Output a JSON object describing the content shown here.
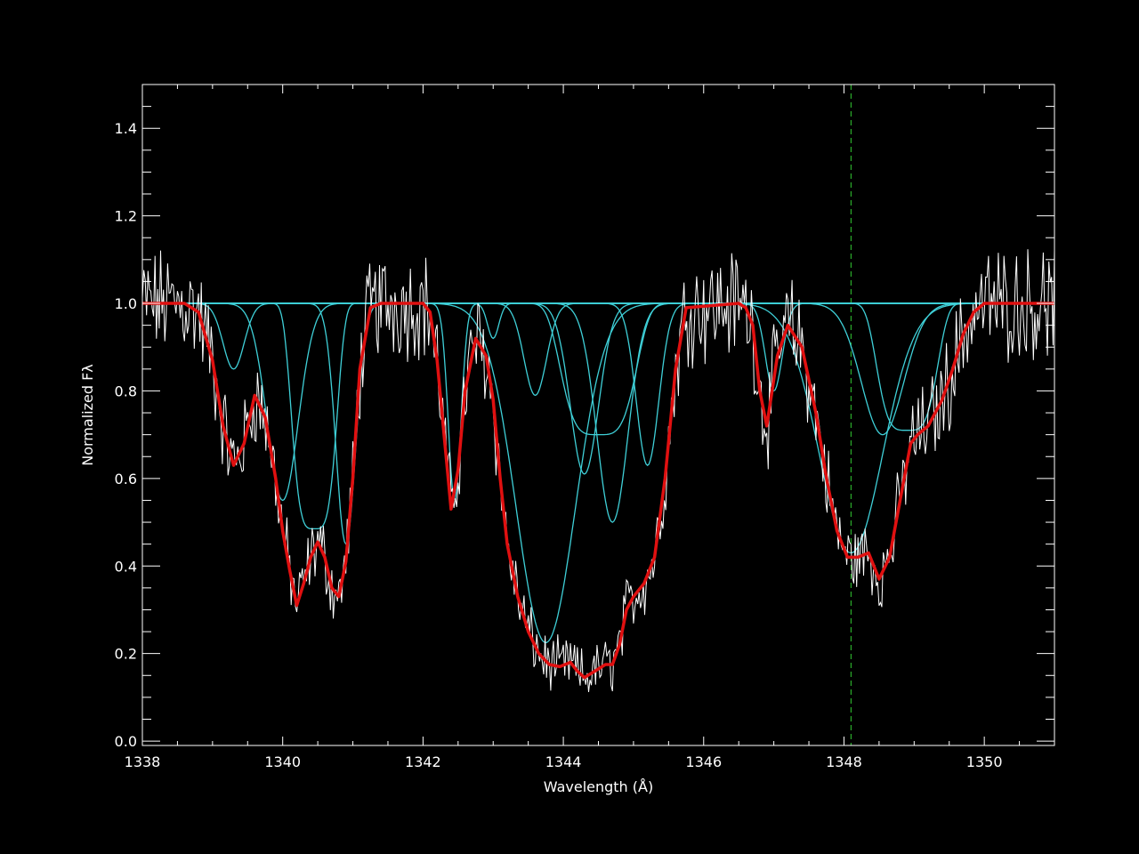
{
  "chart_data": {
    "type": "line",
    "xlabel": "Wavelength (Å)",
    "ylabel": "Normalized Fλ",
    "xlim": [
      1338,
      1351
    ],
    "ylim": [
      -0.01,
      1.5
    ],
    "x_ticks": [
      1338,
      1340,
      1342,
      1344,
      1346,
      1348,
      1350
    ],
    "x_tick_labels": [
      "1338",
      "1340",
      "1342",
      "1344",
      "1346",
      "1348",
      "1350"
    ],
    "y_ticks": [
      0.0,
      0.2,
      0.4,
      0.6,
      0.8,
      1.0,
      1.2,
      1.4
    ],
    "y_tick_labels": [
      "0.0",
      "0.2",
      "0.4",
      "0.6",
      "0.8",
      "1.0",
      "1.2",
      "1.4"
    ],
    "grid": false,
    "marker_line": {
      "x": 1348.1,
      "style": "dashed"
    },
    "continuum": 1.0,
    "components": [
      {
        "center": 1339.3,
        "depth": 0.15,
        "width": 0.15
      },
      {
        "center": 1340.0,
        "depth": 0.45,
        "width": 0.22
      },
      {
        "center": 1340.45,
        "depth": 0.515,
        "width": 0.3,
        "flat": true
      },
      {
        "center": 1340.9,
        "depth": 0.55,
        "width": 0.14
      },
      {
        "center": 1342.45,
        "depth": 0.45,
        "width": 0.09
      },
      {
        "center": 1343.0,
        "depth": 0.08,
        "width": 0.08
      },
      {
        "center": 1343.6,
        "depth": 0.21,
        "width": 0.16
      },
      {
        "center": 1343.75,
        "depth": 0.775,
        "width": 0.42
      },
      {
        "center": 1344.3,
        "depth": 0.39,
        "width": 0.2
      },
      {
        "center": 1344.5,
        "depth": 0.3,
        "width": 0.5,
        "flat": true
      },
      {
        "center": 1344.7,
        "depth": 0.5,
        "width": 0.22
      },
      {
        "center": 1345.2,
        "depth": 0.37,
        "width": 0.16
      },
      {
        "center": 1347.0,
        "depth": 0.2,
        "width": 0.12
      },
      {
        "center": 1348.1,
        "depth": 0.57,
        "width": 0.45
      },
      {
        "center": 1348.55,
        "depth": 0.3,
        "width": 0.3
      },
      {
        "center": 1348.9,
        "depth": 0.29,
        "width": 0.4,
        "flat": true
      }
    ],
    "model": {
      "x": [
        1338.0,
        1338.6,
        1338.8,
        1339.0,
        1339.15,
        1339.3,
        1339.45,
        1339.6,
        1339.75,
        1339.9,
        1340.0,
        1340.1,
        1340.2,
        1340.3,
        1340.4,
        1340.5,
        1340.6,
        1340.7,
        1340.8,
        1340.9,
        1341.0,
        1341.1,
        1341.25,
        1341.4,
        1342.0,
        1342.1,
        1342.2,
        1342.3,
        1342.4,
        1342.5,
        1342.6,
        1342.75,
        1342.9,
        1343.0,
        1343.1,
        1343.2,
        1343.35,
        1343.5,
        1343.65,
        1343.8,
        1343.95,
        1344.1,
        1344.2,
        1344.3,
        1344.45,
        1344.6,
        1344.7,
        1344.8,
        1344.9,
        1345.0,
        1345.15,
        1345.3,
        1345.45,
        1345.6,
        1345.75,
        1346.5,
        1346.6,
        1346.7,
        1346.8,
        1346.9,
        1347.05,
        1347.2,
        1347.4,
        1347.6,
        1347.75,
        1347.9,
        1348.05,
        1348.2,
        1348.35,
        1348.5,
        1348.65,
        1348.8,
        1348.95,
        1349.05,
        1349.2,
        1349.4,
        1349.55,
        1349.7,
        1349.85,
        1350.0,
        1350.2,
        1351.0
      ],
      "y": [
        1.0,
        1.0,
        0.98,
        0.87,
        0.72,
        0.63,
        0.68,
        0.79,
        0.74,
        0.6,
        0.48,
        0.39,
        0.31,
        0.36,
        0.42,
        0.455,
        0.42,
        0.35,
        0.33,
        0.41,
        0.6,
        0.85,
        0.99,
        1.0,
        1.0,
        0.98,
        0.87,
        0.7,
        0.53,
        0.62,
        0.8,
        0.92,
        0.88,
        0.78,
        0.6,
        0.45,
        0.33,
        0.25,
        0.2,
        0.175,
        0.17,
        0.18,
        0.16,
        0.145,
        0.16,
        0.175,
        0.175,
        0.22,
        0.3,
        0.33,
        0.36,
        0.42,
        0.6,
        0.85,
        0.99,
        1.0,
        0.99,
        0.95,
        0.8,
        0.72,
        0.88,
        0.95,
        0.9,
        0.75,
        0.6,
        0.48,
        0.42,
        0.42,
        0.43,
        0.37,
        0.42,
        0.55,
        0.68,
        0.7,
        0.72,
        0.78,
        0.85,
        0.93,
        0.98,
        1.0,
        1.0,
        1.0
      ]
    }
  }
}
